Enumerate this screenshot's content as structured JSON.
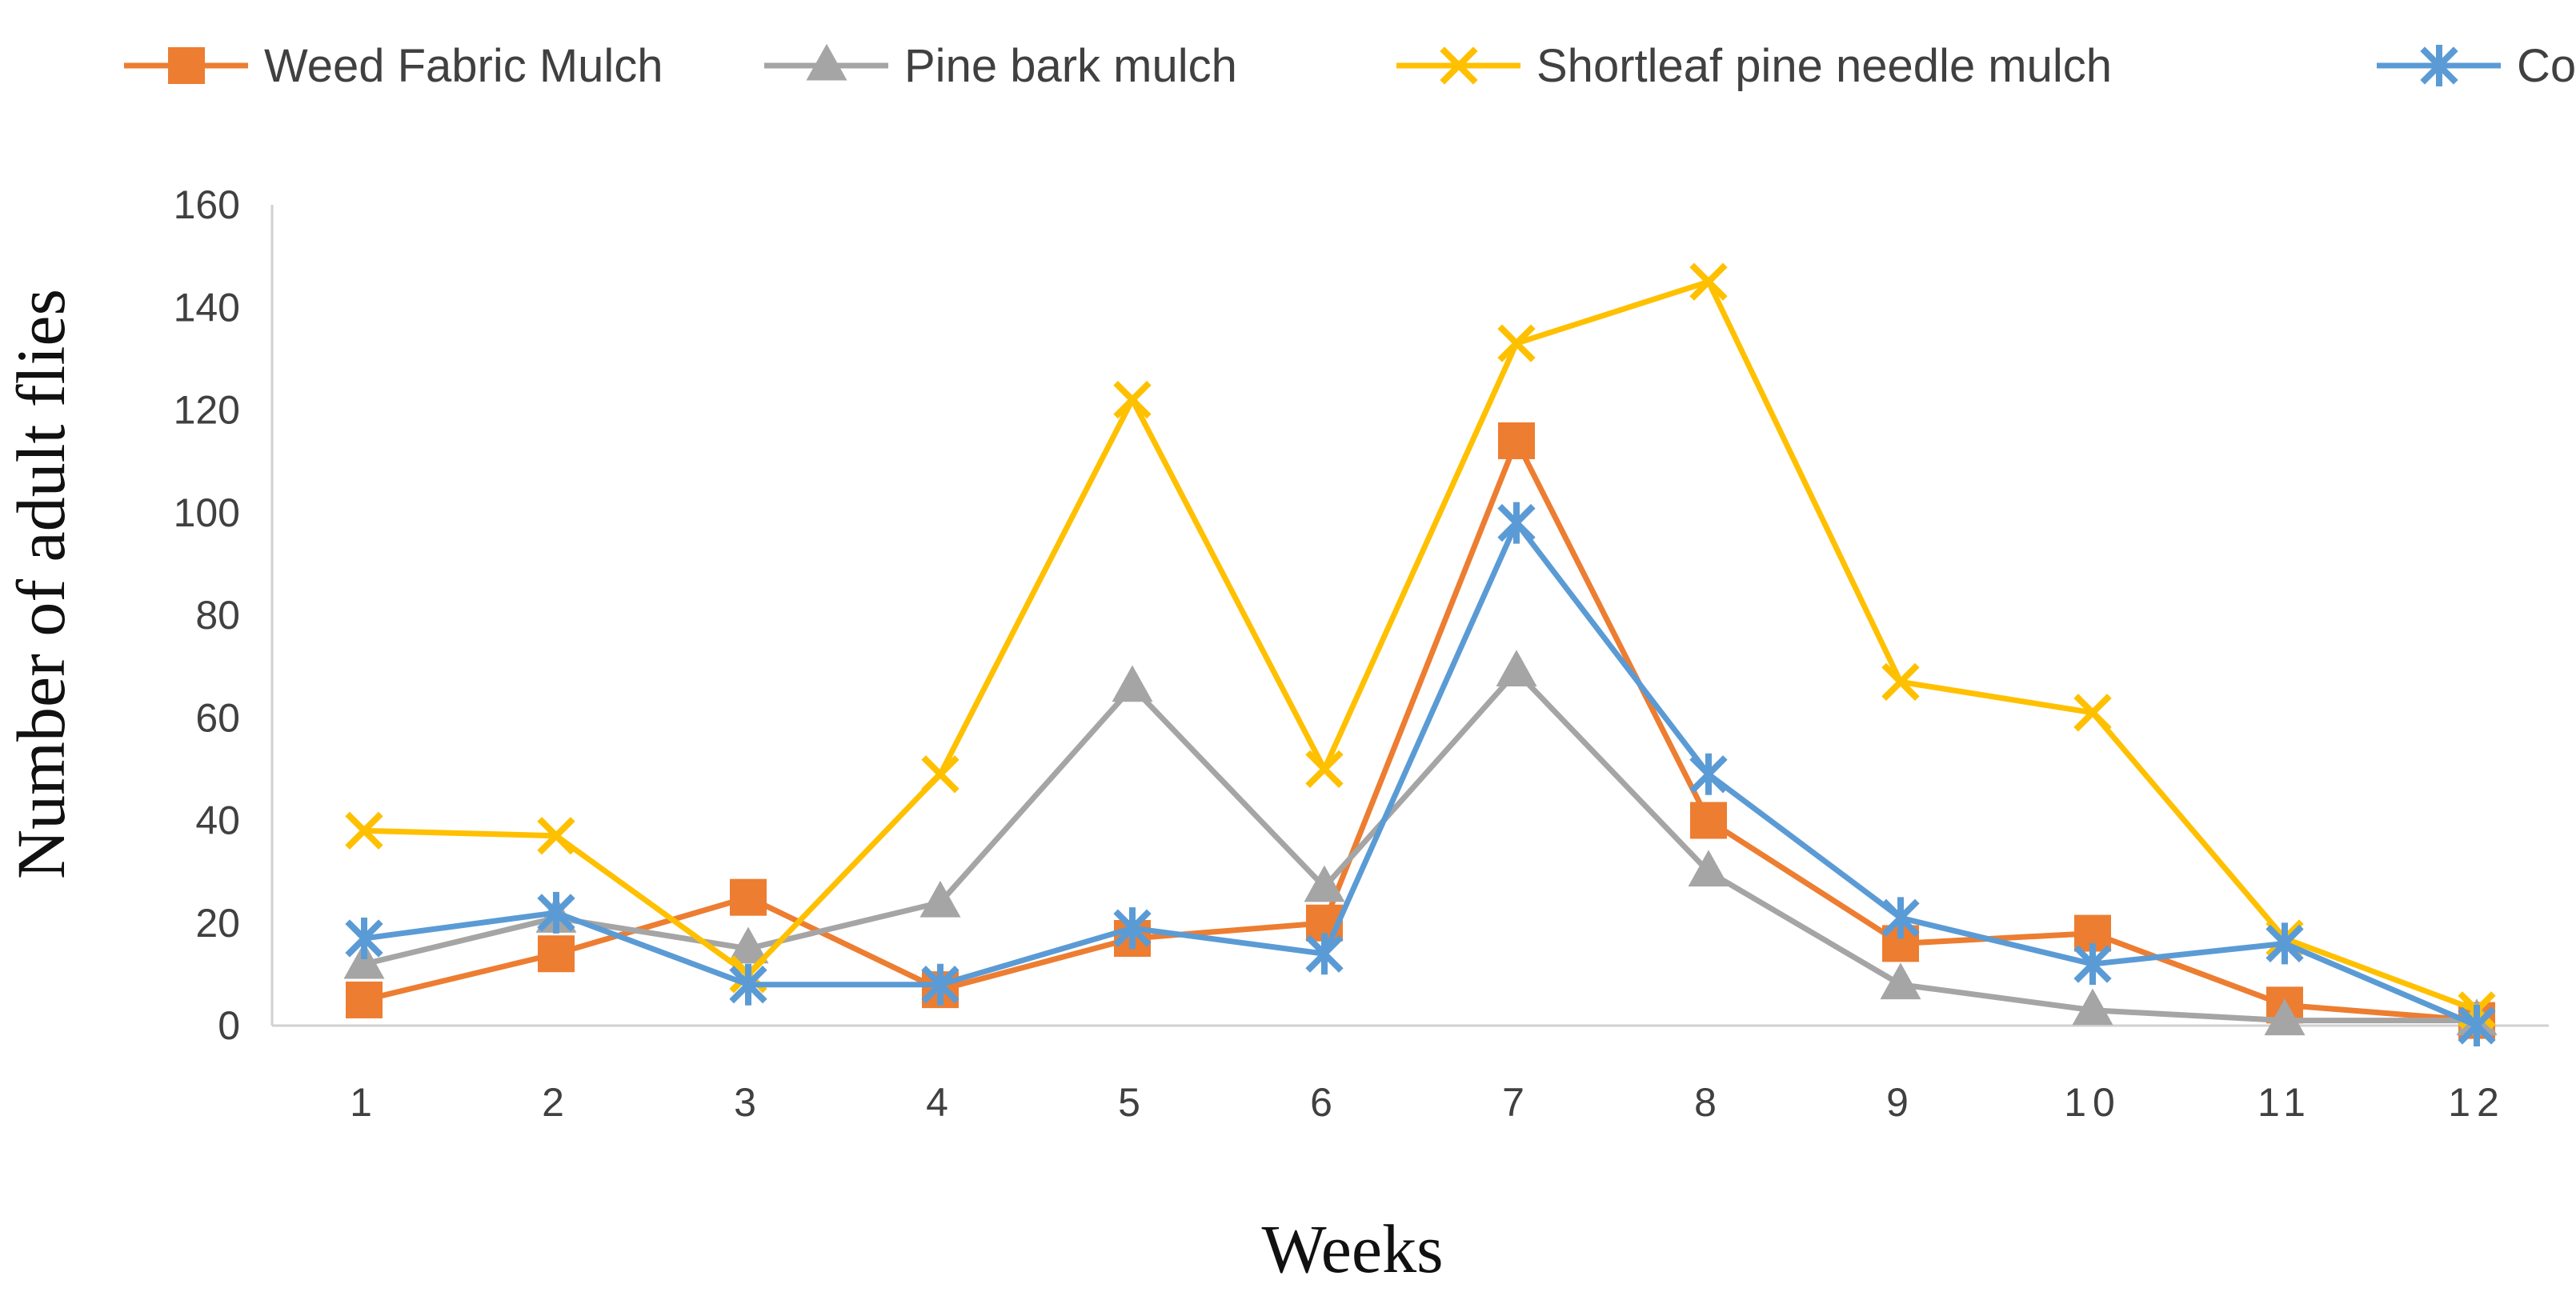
{
  "chart_data": {
    "type": "line",
    "title": "",
    "xlabel": "Weeks",
    "ylabel": "Number of adult flies",
    "categories": [
      "1",
      "2",
      "3",
      "4",
      "5",
      "6",
      "7",
      "8",
      "9",
      "10",
      "11",
      "12"
    ],
    "ylim": [
      0,
      160
    ],
    "yticks": [
      "0",
      "20",
      "40",
      "60",
      "80",
      "100",
      "120",
      "140",
      "160"
    ],
    "grid": false,
    "legend": "top",
    "series": [
      {
        "name": "Weed Fabric Mulch",
        "color": "#ED7D31",
        "marker": "square",
        "values": [
          5,
          14,
          25,
          7,
          17,
          20,
          114,
          40,
          16,
          18,
          4,
          1
        ]
      },
      {
        "name": "Pine bark mulch",
        "color": "#A5A5A5",
        "marker": "triangle",
        "values": [
          12,
          21,
          15,
          24,
          66,
          27,
          69,
          30,
          8,
          3,
          1,
          1
        ]
      },
      {
        "name": "Shortleaf pine needle mulch",
        "color": "#FFC000",
        "marker": "x",
        "values": [
          38,
          37,
          10,
          49,
          122,
          50,
          133,
          145,
          67,
          61,
          17,
          3
        ]
      },
      {
        "name": "Control",
        "color": "#5B9BD5",
        "marker": "star",
        "values": [
          17,
          22,
          8,
          8,
          19,
          14,
          98,
          49,
          21,
          12,
          16,
          0
        ]
      }
    ]
  }
}
